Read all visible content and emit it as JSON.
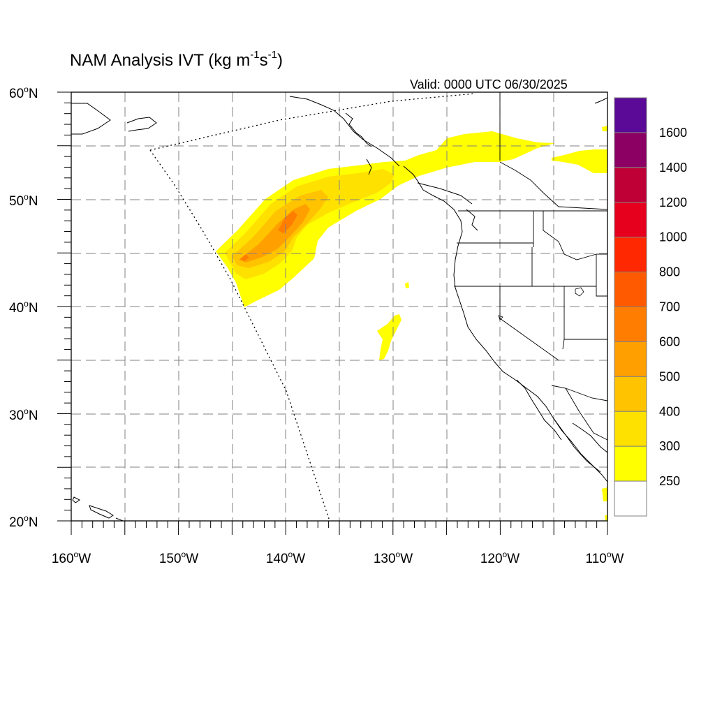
{
  "title": {
    "main": "NAM Analysis IVT (kg m",
    "exp1": "-1",
    "mid": "s",
    "exp2": "-1",
    "close": ")"
  },
  "valid_time": "Valid: 0000 UTC 06/30/2025",
  "axes": {
    "lon_labels": [
      "160",
      "150",
      "140",
      "130",
      "120",
      "110"
    ],
    "lon_suffix": "W",
    "lat_labels": [
      "60",
      "50",
      "40",
      "30",
      "20"
    ],
    "lat_suffix": "N",
    "degree_symbol": "o"
  },
  "colorbar": {
    "labels": [
      "250",
      "300",
      "400",
      "500",
      "600",
      "700",
      "800",
      "1000",
      "1200",
      "1400",
      "1600"
    ],
    "colors_top_to_bottom": [
      "#5a0a96",
      "#8c0064",
      "#be0037",
      "#e6001e",
      "#ff2800",
      "#ff5a00",
      "#ff7d00",
      "#ffa000",
      "#ffc300",
      "#ffe100",
      "#ffff00",
      "#ffffff"
    ]
  },
  "chart_data": {
    "type": "heatmap",
    "variable": "IVT",
    "units": "kg m-1 s-1",
    "lon_range": [
      -160,
      -110
    ],
    "lat_range": [
      20,
      60
    ],
    "grid": true,
    "contour_levels": [
      250,
      300,
      400,
      500,
      600,
      700,
      800,
      1000,
      1200,
      1400,
      1600
    ],
    "features": [
      {
        "type": "atmospheric-river",
        "from": [
          -146.5,
          45
        ],
        "to": [
          -115,
          55.3
        ],
        "max_value_range": [
          500,
          600
        ],
        "max_near": [
          -140,
          48
        ]
      },
      {
        "type": "small-plume",
        "near": [
          -130.5,
          37.5
        ],
        "value_range": [
          250,
          300
        ]
      },
      {
        "type": "small-plume",
        "near": [
          -112.5,
          54
        ],
        "value_range": [
          250,
          300
        ]
      }
    ]
  }
}
